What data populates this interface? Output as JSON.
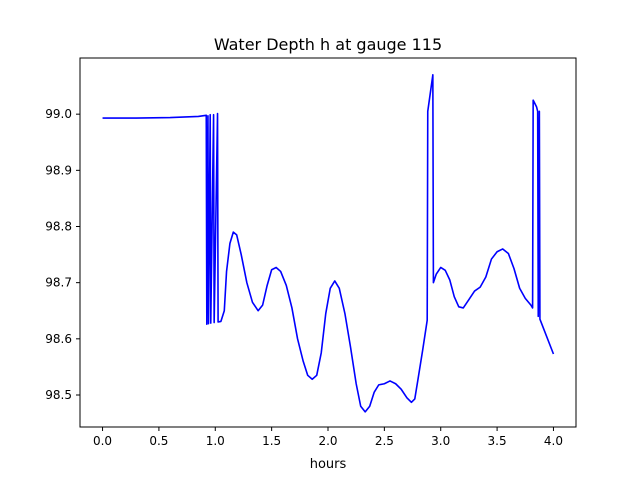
{
  "chart_data": {
    "type": "line",
    "title": "Water Depth h at gauge 115",
    "xlabel": "hours",
    "ylabel": "",
    "xlim": [
      -0.2,
      4.2
    ],
    "ylim": [
      98.443,
      99.1
    ],
    "xticks": [
      0.0,
      0.5,
      1.0,
      1.5,
      2.0,
      2.5,
      3.0,
      3.5,
      4.0
    ],
    "xtick_labels": [
      "0.0",
      "0.5",
      "1.0",
      "1.5",
      "2.0",
      "2.5",
      "3.0",
      "3.5",
      "4.0"
    ],
    "yticks": [
      98.5,
      98.6,
      98.7,
      98.8,
      98.9,
      99.0
    ],
    "ytick_labels": [
      "98.5",
      "98.6",
      "98.7",
      "98.8",
      "98.9",
      "99.0"
    ],
    "grid": false,
    "legend": "none",
    "series": [
      {
        "color": "#0000ff",
        "points": [
          [
            0.0,
            98.993
          ],
          [
            0.3,
            98.993
          ],
          [
            0.6,
            98.994
          ],
          [
            0.85,
            98.996
          ],
          [
            0.92,
            98.998
          ],
          [
            0.925,
            98.626
          ],
          [
            0.935,
            98.997
          ],
          [
            0.94,
            98.627
          ],
          [
            0.955,
            98.999
          ],
          [
            0.96,
            98.628
          ],
          [
            0.985,
            98.999
          ],
          [
            0.99,
            98.629
          ],
          [
            1.02,
            99.001
          ],
          [
            1.025,
            98.63
          ],
          [
            1.05,
            98.631
          ],
          [
            1.08,
            98.65
          ],
          [
            1.1,
            98.72
          ],
          [
            1.13,
            98.77
          ],
          [
            1.16,
            98.79
          ],
          [
            1.19,
            98.785
          ],
          [
            1.23,
            98.75
          ],
          [
            1.28,
            98.7
          ],
          [
            1.33,
            98.665
          ],
          [
            1.38,
            98.65
          ],
          [
            1.42,
            98.66
          ],
          [
            1.46,
            98.695
          ],
          [
            1.5,
            98.723
          ],
          [
            1.54,
            98.727
          ],
          [
            1.58,
            98.72
          ],
          [
            1.63,
            98.695
          ],
          [
            1.68,
            98.655
          ],
          [
            1.73,
            98.6
          ],
          [
            1.78,
            98.56
          ],
          [
            1.82,
            98.535
          ],
          [
            1.86,
            98.528
          ],
          [
            1.9,
            98.535
          ],
          [
            1.94,
            98.575
          ],
          [
            1.98,
            98.645
          ],
          [
            2.02,
            98.69
          ],
          [
            2.06,
            98.703
          ],
          [
            2.1,
            98.69
          ],
          [
            2.15,
            98.645
          ],
          [
            2.2,
            98.585
          ],
          [
            2.25,
            98.52
          ],
          [
            2.29,
            98.48
          ],
          [
            2.33,
            98.47
          ],
          [
            2.37,
            98.48
          ],
          [
            2.41,
            98.505
          ],
          [
            2.45,
            98.518
          ],
          [
            2.5,
            98.52
          ],
          [
            2.55,
            98.525
          ],
          [
            2.6,
            98.52
          ],
          [
            2.65,
            98.51
          ],
          [
            2.7,
            98.495
          ],
          [
            2.74,
            98.487
          ],
          [
            2.77,
            98.493
          ],
          [
            2.8,
            98.53
          ],
          [
            2.84,
            98.58
          ],
          [
            2.88,
            98.633
          ],
          [
            2.885,
            99.005
          ],
          [
            2.93,
            99.07
          ],
          [
            2.935,
            98.7
          ],
          [
            2.96,
            98.715
          ],
          [
            3.0,
            98.727
          ],
          [
            3.04,
            98.722
          ],
          [
            3.08,
            98.705
          ],
          [
            3.12,
            98.675
          ],
          [
            3.16,
            98.657
          ],
          [
            3.2,
            98.655
          ],
          [
            3.25,
            98.67
          ],
          [
            3.3,
            98.685
          ],
          [
            3.35,
            98.692
          ],
          [
            3.4,
            98.71
          ],
          [
            3.45,
            98.742
          ],
          [
            3.5,
            98.755
          ],
          [
            3.55,
            98.76
          ],
          [
            3.6,
            98.752
          ],
          [
            3.65,
            98.725
          ],
          [
            3.7,
            98.69
          ],
          [
            3.75,
            98.672
          ],
          [
            3.8,
            98.66
          ],
          [
            3.815,
            98.655
          ],
          [
            3.82,
            99.025
          ],
          [
            3.85,
            99.013
          ],
          [
            3.86,
            99.005
          ],
          [
            3.865,
            98.64
          ],
          [
            3.875,
            99.005
          ],
          [
            3.88,
            98.635
          ],
          [
            4.0,
            98.573
          ]
        ]
      }
    ]
  }
}
